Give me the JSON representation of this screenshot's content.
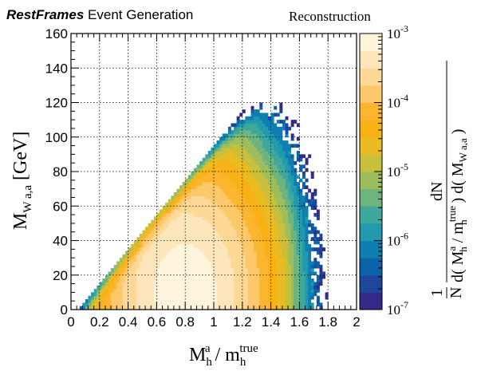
{
  "header": {
    "brand": "RestFrames",
    "rest": " Event Generation",
    "right": "Reconstruction"
  },
  "chart_data": {
    "type": "heatmap",
    "title": "",
    "xlabel": {
      "base": "M",
      "sub": "h",
      "sup": "a",
      "sep": " / m",
      "sub2": "h",
      "sup2": "true"
    },
    "ylabel": {
      "base": "M",
      "sub": "W a,a",
      "unit": " [GeV]"
    },
    "zlabel": {
      "one": "1",
      "N": "N",
      "dN": "dN",
      "den1": "d( M",
      "den1_sup": "a",
      "den1_sub": "h",
      "den2": " / m",
      "den2_sup": "true",
      "den2_sub": "h",
      "den3": " ) d( M",
      "den3_sub": "W a,a",
      "den4": " )"
    },
    "xlim": [
      0,
      2
    ],
    "ylim": [
      0,
      160
    ],
    "zlim": [
      1e-07,
      0.001
    ],
    "zscale": "log",
    "grid": true,
    "x_ticks": [
      "0",
      "0.2",
      "0.4",
      "0.6",
      "0.8",
      "1",
      "1.2",
      "1.4",
      "1.6",
      "1.8",
      "2"
    ],
    "y_ticks": [
      "0",
      "20",
      "40",
      "60",
      "80",
      "100",
      "120",
      "140",
      "160"
    ],
    "z_ticks": [
      {
        "base": "10",
        "exp": "-7"
      },
      {
        "base": "10",
        "exp": "-6"
      },
      {
        "base": "10",
        "exp": "-5"
      },
      {
        "base": "10",
        "exp": "-4"
      },
      {
        "base": "10",
        "exp": "-3"
      }
    ],
    "density": {
      "peak_x": 0.8,
      "peak_y": 10,
      "peak_value": 0.0008,
      "upper_edge_slope": 100,
      "upper_edge_intercept": -7,
      "max_y": 120,
      "max_x": 1.92
    },
    "colormap": [
      "#352a87",
      "#1c479b",
      "#0b63a8",
      "#0e7fb0",
      "#2399ae",
      "#3fa89c",
      "#6db47f",
      "#9fbd5d",
      "#c8bf3c",
      "#ebbb22",
      "#f9b216",
      "#fbb52e",
      "#fcc86a",
      "#fdd896",
      "#fee6bc",
      "#fff4dc"
    ]
  }
}
